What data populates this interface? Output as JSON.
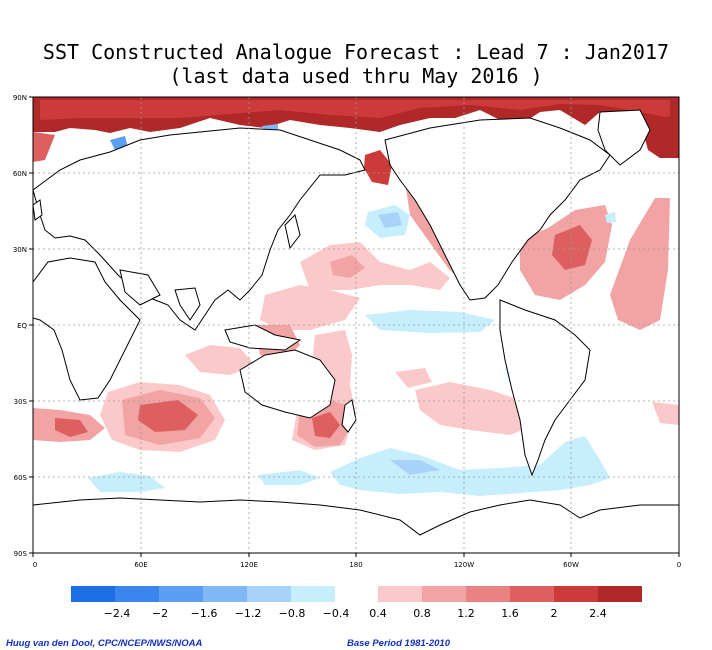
{
  "title_line1": "SST Constructed Analogue Forecast : Lead 7 : Jan2017",
  "title_line2": "(last data used thru May 2016 )",
  "lat_labels": [
    "90N",
    "60N",
    "30N",
    "EQ",
    "30S",
    "60S",
    "90S"
  ],
  "lon_labels": [
    "0",
    "60E",
    "120E",
    "180",
    "120W",
    "60W",
    "0"
  ],
  "colorbar": {
    "negative_colors": [
      "#1e6fe6",
      "#3a86ee",
      "#5a9ff3",
      "#80b8f7",
      "#a8d2fa",
      "#c6eefc"
    ],
    "positive_colors": [
      "#fbc9c9",
      "#f2a3a3",
      "#e98383",
      "#de5f5f",
      "#cc3a3a",
      "#b02828"
    ],
    "tick_labels_negative": [
      "−2.4",
      "−2",
      "−1.6",
      "−1.2",
      "−0.8",
      "−0.4"
    ],
    "tick_labels_positive": [
      "0.4",
      "0.8",
      "1.2",
      "1.6",
      "2",
      "2.4"
    ]
  },
  "credit_left": "Huug van den Dool, CPC/NCEP/NWS/NOAA",
  "credit_right": "Base Period 1981-2010",
  "colors": {
    "land_outline": "#000000",
    "grid": "#9a9a9a",
    "ocean": "#ffffff"
  }
}
